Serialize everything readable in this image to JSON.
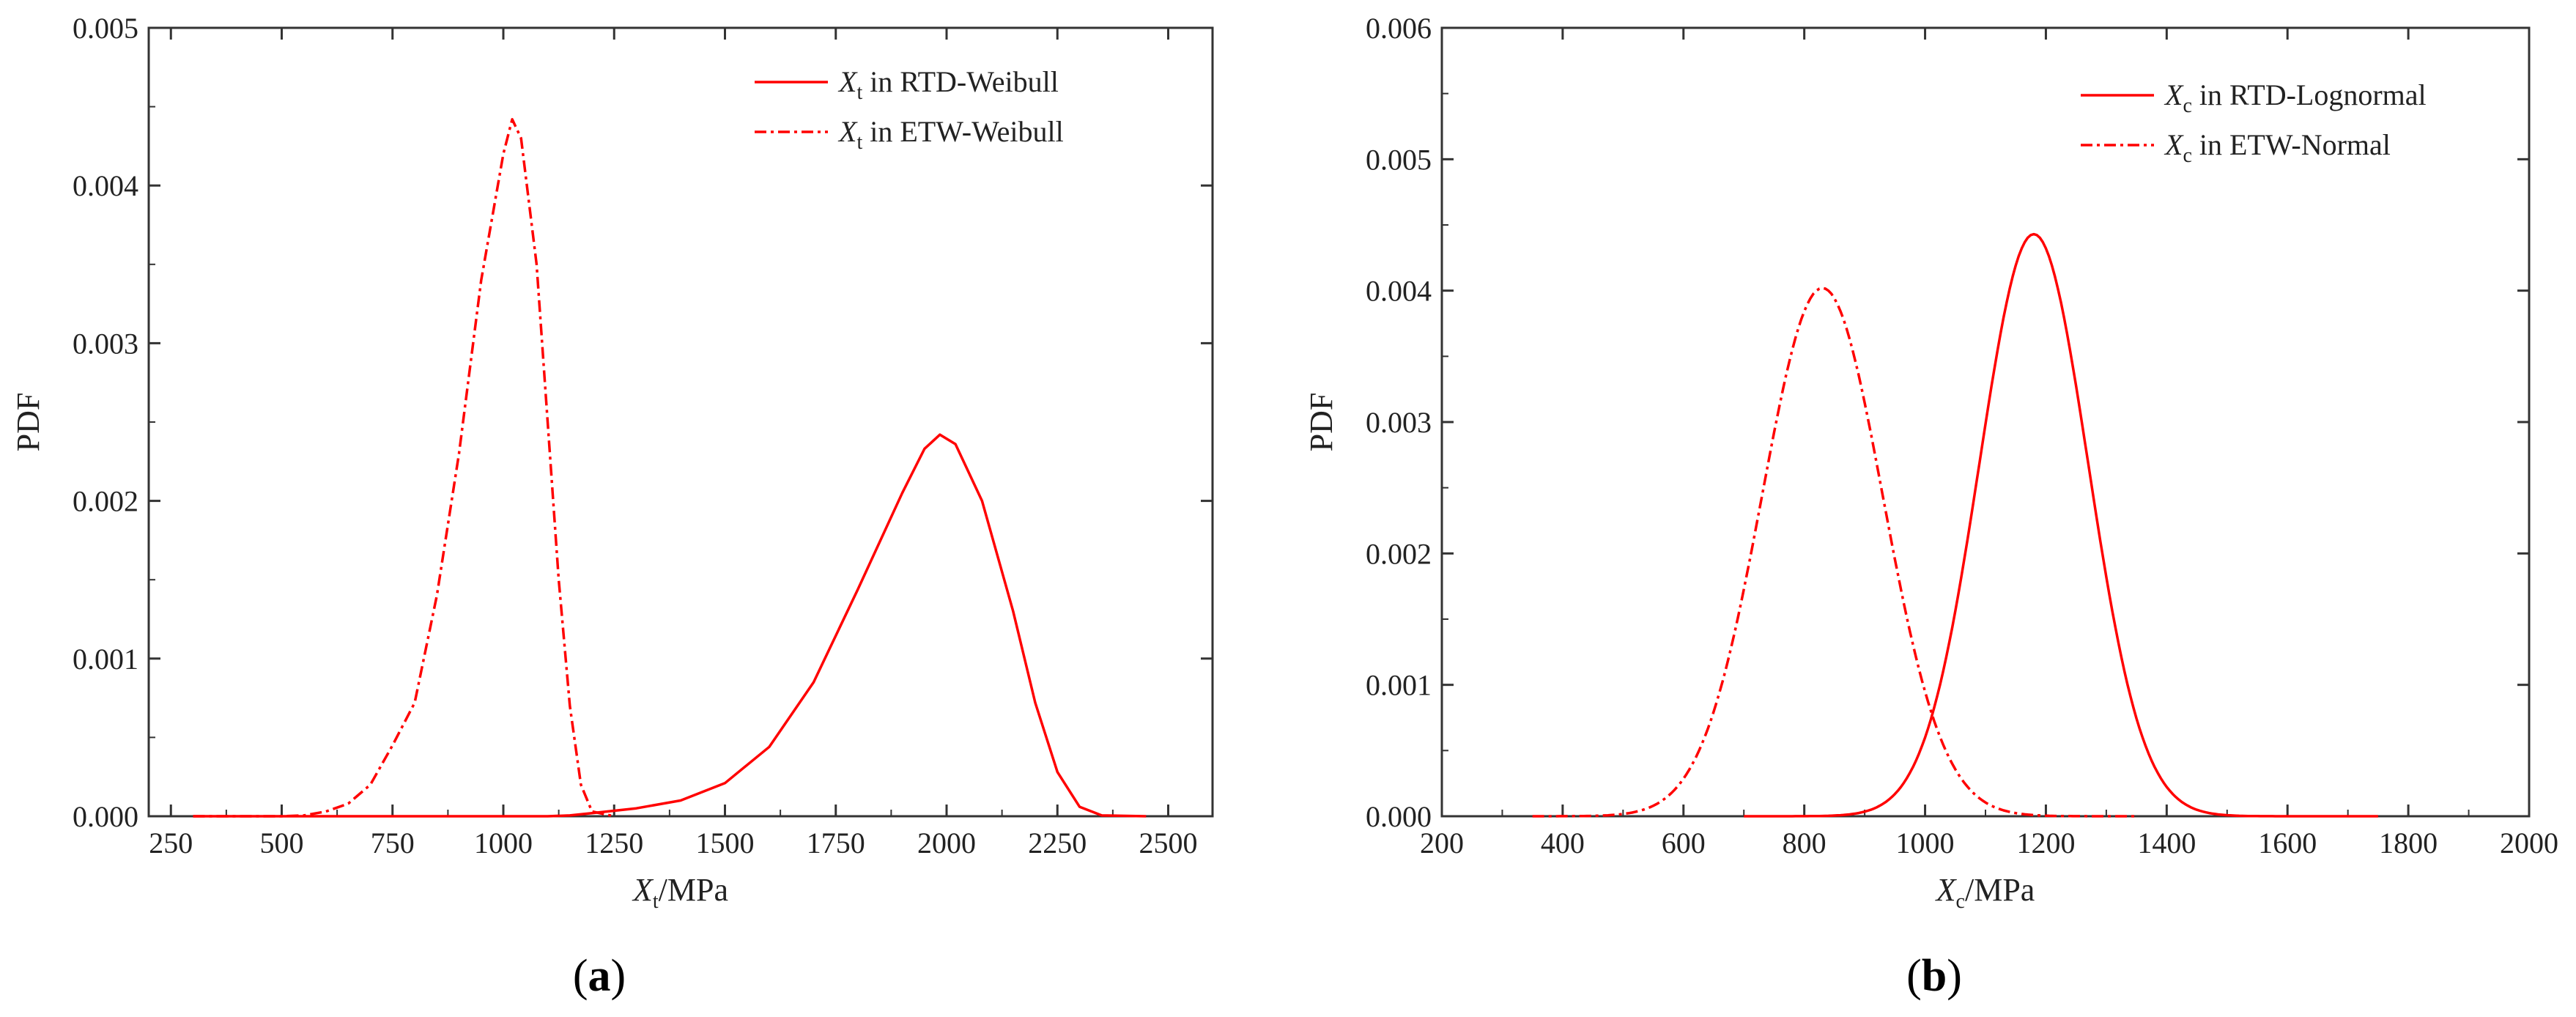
{
  "colors": {
    "series": "#ff0000",
    "axis": "#333333"
  },
  "chart_data": [
    {
      "type": "line",
      "panel_label": "a",
      "xlabel": {
        "var": "X",
        "sub": "t",
        "unit": "/MPa"
      },
      "ylabel": "PDF",
      "xlim": [
        200,
        2600
      ],
      "ylim": [
        0,
        0.005
      ],
      "xticks": [
        250,
        500,
        750,
        1000,
        1250,
        1500,
        1750,
        2000,
        2250,
        2500
      ],
      "xtick_labels": [
        "250",
        "500",
        "750",
        "1000",
        "1250",
        "1500",
        "1750",
        "2000",
        "2250",
        "2500"
      ],
      "yticks": [
        0,
        0.001,
        0.002,
        0.003,
        0.004,
        0.005
      ],
      "ytick_labels": [
        "0.000",
        "0.001",
        "0.002",
        "0.003",
        "0.004",
        "0.005"
      ],
      "legend_position": "top-right",
      "series": [
        {
          "name": "RTD-Weibull",
          "legend": {
            "var": "X",
            "sub": "t",
            "text": " in RTD-Weibull"
          },
          "style": "solid",
          "points": [
            [
              300,
              0
            ],
            [
              1100,
              0
            ],
            [
              1150,
              5e-06
            ],
            [
              1200,
              2e-05
            ],
            [
              1300,
              5e-05
            ],
            [
              1400,
              0.0001
            ],
            [
              1500,
              0.00021
            ],
            [
              1600,
              0.00044
            ],
            [
              1700,
              0.00085
            ],
            [
              1800,
              0.00144
            ],
            [
              1900,
              0.00205
            ],
            [
              1950,
              0.00233
            ],
            [
              1985,
              0.00242
            ],
            [
              2020,
              0.00236
            ],
            [
              2080,
              0.002
            ],
            [
              2150,
              0.0013
            ],
            [
              2200,
              0.00072
            ],
            [
              2250,
              0.00028
            ],
            [
              2300,
              6e-05
            ],
            [
              2350,
              5e-06
            ],
            [
              2450,
              0
            ]
          ]
        },
        {
          "name": "ETW-Weibull",
          "legend": {
            "var": "X",
            "sub": "t",
            "text": " in ETW-Weibull"
          },
          "style": "dashdot",
          "points": [
            [
              300,
              0
            ],
            [
              500,
              0
            ],
            [
              550,
              5e-06
            ],
            [
              600,
              3e-05
            ],
            [
              650,
              8e-05
            ],
            [
              700,
              0.0002
            ],
            [
              750,
              0.00045
            ],
            [
              800,
              0.00072
            ],
            [
              850,
              0.0014
            ],
            [
              900,
              0.0023
            ],
            [
              950,
              0.0034
            ],
            [
              1000,
              0.0042
            ],
            [
              1020,
              0.00442
            ],
            [
              1040,
              0.0043
            ],
            [
              1075,
              0.0035
            ],
            [
              1100,
              0.0025
            ],
            [
              1125,
              0.0015
            ],
            [
              1150,
              0.0007
            ],
            [
              1175,
              0.0002
            ],
            [
              1200,
              3e-05
            ],
            [
              1250,
              0
            ]
          ]
        }
      ]
    },
    {
      "type": "line",
      "panel_label": "b",
      "xlabel": {
        "var": "X",
        "sub": "c",
        "unit": "/MPa"
      },
      "ylabel": "PDF",
      "xlim": [
        200,
        2000
      ],
      "ylim": [
        0,
        0.006
      ],
      "xticks": [
        200,
        400,
        600,
        800,
        1000,
        1200,
        1400,
        1600,
        1800,
        2000
      ],
      "xtick_labels": [
        "200",
        "400",
        "600",
        "800",
        "1000",
        "1200",
        "1400",
        "1600",
        "1800",
        "2000"
      ],
      "yticks": [
        0,
        0.001,
        0.002,
        0.003,
        0.004,
        0.005,
        0.006
      ],
      "ytick_labels": [
        "0.000",
        "0.001",
        "0.002",
        "0.003",
        "0.004",
        "0.005",
        "0.006"
      ],
      "legend_position": "top-right",
      "series": [
        {
          "name": "RTD-Lognormal",
          "legend": {
            "var": "X",
            "sub": "c",
            "text": " in RTD-Lognormal"
          },
          "style": "solid",
          "dist": {
            "kind": "normal",
            "mean": 1180,
            "sd": 90,
            "peak": 0.00443,
            "xmin": 700,
            "xmax": 1750
          }
        },
        {
          "name": "ETW-Normal",
          "legend": {
            "var": "X",
            "sub": "c",
            "text": " in ETW-Normal"
          },
          "style": "dashdot",
          "dist": {
            "kind": "normal",
            "mean": 830,
            "sd": 100,
            "peak": 0.00402,
            "xmin": 350,
            "xmax": 1350
          }
        }
      ]
    }
  ]
}
